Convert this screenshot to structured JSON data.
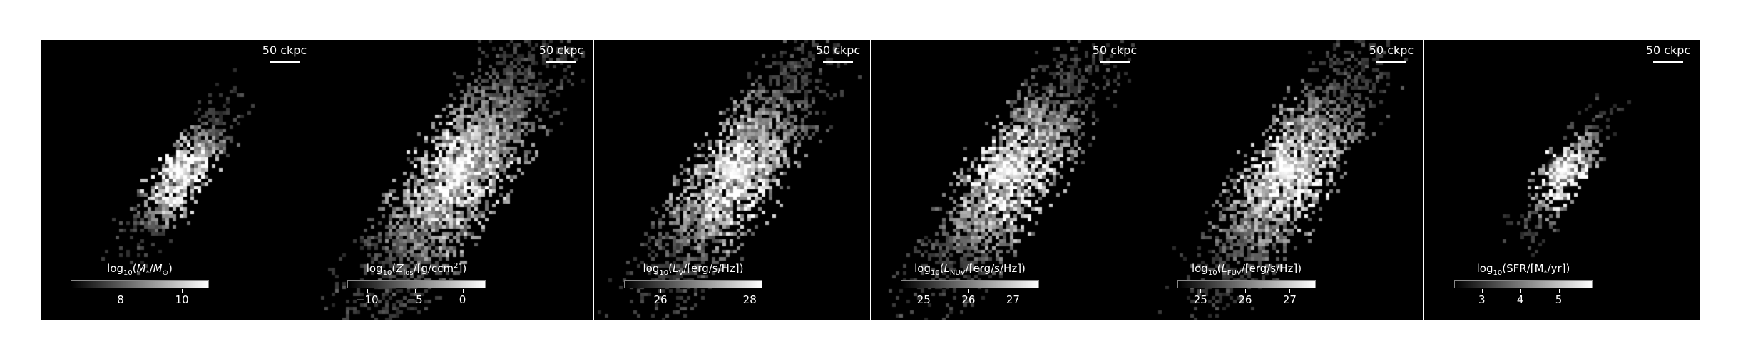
{
  "panels": [
    {
      "scale_label": "50 ckpc",
      "colorbar": {
        "label_html": "log<sub>10</sub>(<i>M</i><sub>*</sub>/<i>M</i><sub>⊙</sub>)",
        "ticks": [
          "8",
          "10"
        ],
        "range": [
          6.4,
          10.9
        ],
        "tick_values": [
          8,
          10
        ]
      },
      "morph": "compact"
    },
    {
      "scale_label": "50 ckpc",
      "colorbar": {
        "label_html": "log<sub>10</sub>(<i>Z</i><sub>los</sub>/[g/ccm<sup>2</sup>])",
        "ticks": [
          "−10",
          "−5",
          "0"
        ],
        "range": [
          -12,
          2.5
        ],
        "tick_values": [
          -10,
          -5,
          0
        ]
      },
      "morph": "wide"
    },
    {
      "scale_label": "50 ckpc",
      "colorbar": {
        "label_html": "log<sub>10</sub>(<i>L</i><sub>V</sub>/[erg/s/Hz])",
        "ticks": [
          "26",
          "28"
        ],
        "range": [
          25.2,
          28.3
        ],
        "tick_values": [
          26,
          28
        ]
      },
      "morph": "mid"
    },
    {
      "scale_label": "50 ckpc",
      "colorbar": {
        "label_html": "log<sub>10</sub>(<i>L</i><sub>NUV</sub>/[erg/s/Hz])",
        "ticks": [
          "25",
          "26",
          "27"
        ],
        "range": [
          24.5,
          27.6
        ],
        "tick_values": [
          25,
          26,
          27
        ]
      },
      "morph": "mid"
    },
    {
      "scale_label": "50 ckpc",
      "colorbar": {
        "label_html": "log<sub>10</sub>(<i>L</i><sub>FUV</sub>/[erg/s/Hz])",
        "ticks": [
          "25",
          "26",
          "27"
        ],
        "range": [
          24.5,
          27.6
        ],
        "tick_values": [
          25,
          26,
          27
        ]
      },
      "morph": "mid"
    },
    {
      "scale_label": "50 ckpc",
      "colorbar": {
        "label_html": "log<sub>10</sub>(SFR/[M<sub>*</sub>/yr])",
        "ticks": [
          "3",
          "4",
          "5"
        ],
        "range": [
          2.3,
          5.9
        ],
        "tick_values": [
          3,
          4,
          5
        ]
      },
      "morph": "sparse"
    }
  ]
}
